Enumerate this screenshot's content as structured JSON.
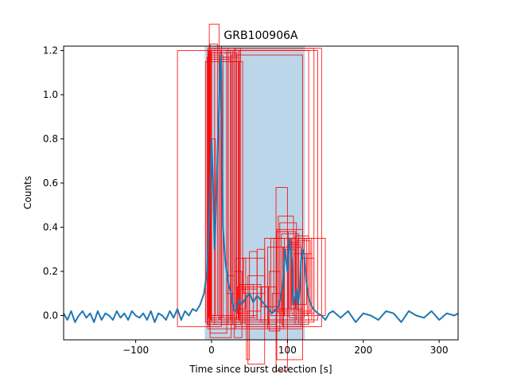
{
  "chart_data": {
    "type": "line",
    "title": "GRB100906A",
    "xlabel": "Time since burst detection [s]",
    "ylabel": "Counts",
    "xlim": [
      -195,
      325
    ],
    "ylim": [
      -0.11,
      1.22
    ],
    "xticks": [
      -100,
      0,
      100,
      200,
      300
    ],
    "yticks": [
      0.0,
      0.2,
      0.4,
      0.6,
      0.8,
      1.0,
      1.2
    ],
    "tick_labels_x": [
      "−100",
      "0",
      "100",
      "200",
      "300"
    ],
    "tick_labels_y": [
      "0.0",
      "0.2",
      "0.4",
      "0.6",
      "0.8",
      "1.0",
      "1.2"
    ],
    "shaded_interval": [
      -9,
      123
    ],
    "series": [
      {
        "color": "#1f77b4",
        "x": [
          -195,
          -190,
          -185,
          -180,
          -175,
          -170,
          -165,
          -160,
          -155,
          -150,
          -145,
          -140,
          -135,
          -130,
          -125,
          -120,
          -115,
          -110,
          -105,
          -100,
          -95,
          -90,
          -85,
          -80,
          -75,
          -70,
          -65,
          -60,
          -55,
          -50,
          -45,
          -40,
          -35,
          -30,
          -25,
          -20,
          -15,
          -10,
          -6,
          -3,
          0,
          2,
          4,
          6,
          8,
          10,
          11,
          12,
          13,
          14,
          15,
          16,
          17,
          18,
          19,
          20,
          22,
          24,
          26,
          28,
          30,
          33,
          36,
          40,
          45,
          50,
          55,
          60,
          65,
          70,
          75,
          80,
          85,
          88,
          91,
          94,
          97,
          100,
          103,
          106,
          108,
          110,
          112,
          114,
          116,
          118,
          120,
          122,
          125,
          128,
          131,
          134,
          137,
          140,
          145,
          150,
          155,
          160,
          170,
          180,
          190,
          200,
          210,
          220,
          230,
          240,
          250,
          260,
          270,
          280,
          290,
          300,
          310,
          320,
          325
        ],
        "y": [
          0.01,
          -0.02,
          0.02,
          -0.03,
          0.0,
          0.02,
          -0.01,
          0.01,
          -0.03,
          0.02,
          -0.02,
          0.01,
          0.0,
          -0.02,
          0.02,
          -0.01,
          0.01,
          -0.02,
          0.02,
          0.0,
          -0.01,
          0.01,
          -0.02,
          0.02,
          -0.03,
          0.01,
          0.0,
          -0.02,
          0.02,
          -0.01,
          0.03,
          -0.02,
          0.02,
          0.0,
          0.03,
          0.02,
          0.05,
          0.1,
          0.2,
          0.45,
          0.8,
          0.6,
          0.3,
          0.5,
          0.75,
          0.95,
          1.1,
          1.18,
          1.12,
          0.7,
          0.4,
          0.35,
          0.3,
          0.25,
          0.22,
          0.2,
          0.15,
          0.12,
          0.1,
          0.05,
          0.02,
          0.03,
          0.07,
          0.05,
          0.08,
          0.1,
          0.06,
          0.09,
          0.07,
          0.05,
          0.03,
          0.01,
          0.03,
          0.04,
          0.08,
          0.15,
          0.3,
          0.2,
          0.35,
          0.25,
          0.05,
          0.08,
          0.12,
          0.05,
          0.1,
          0.25,
          0.3,
          0.28,
          0.15,
          0.08,
          0.05,
          0.03,
          0.02,
          0.01,
          0.0,
          -0.02,
          0.01,
          0.02,
          -0.01,
          0.02,
          -0.03,
          0.01,
          0.0,
          -0.02,
          0.02,
          0.01,
          -0.03,
          0.02,
          0.0,
          -0.01,
          0.02,
          -0.02,
          0.01,
          0.0,
          0.01
        ]
      }
    ],
    "boxes": [
      [
        -45,
        -0.05,
        -3,
        1.2
      ],
      [
        -3,
        -0.02,
        10,
        1.32
      ],
      [
        -1,
        0.0,
        5,
        0.8
      ],
      [
        -2,
        0.0,
        8,
        1.23
      ],
      [
        -5,
        -0.02,
        12,
        1.2
      ],
      [
        -3,
        -0.05,
        13,
        1.22
      ],
      [
        -4,
        -0.01,
        15,
        1.18
      ],
      [
        -2,
        -0.08,
        20,
        1.19
      ],
      [
        0,
        -0.03,
        22,
        1.21
      ],
      [
        -1,
        -0.02,
        25,
        1.2
      ],
      [
        -6,
        -0.04,
        28,
        1.17
      ],
      [
        -3,
        0.0,
        30,
        1.2
      ],
      [
        -5,
        -0.06,
        32,
        1.21
      ],
      [
        -2,
        -0.1,
        26,
        1.16
      ],
      [
        0,
        -0.02,
        33,
        1.19
      ],
      [
        -4,
        -0.01,
        35,
        1.2
      ],
      [
        -8,
        -0.03,
        36,
        1.15
      ],
      [
        4,
        -0.04,
        38,
        1.21
      ],
      [
        10,
        -0.02,
        35,
        1.17
      ],
      [
        20,
        -0.02,
        37,
        1.2
      ],
      [
        22,
        -0.04,
        41,
        1.15
      ],
      [
        26,
        -0.06,
        120,
        1.18
      ],
      [
        28,
        -0.02,
        128,
        1.2
      ],
      [
        30,
        -0.03,
        135,
        1.21
      ],
      [
        25,
        -0.02,
        140,
        1.2
      ],
      [
        30,
        -0.05,
        145,
        1.21
      ],
      [
        20,
        0.1,
        30,
        0.18
      ],
      [
        30,
        -0.1,
        40,
        0.2
      ],
      [
        32,
        0.03,
        45,
        0.26
      ],
      [
        34,
        0.01,
        50,
        0.13
      ],
      [
        36,
        -0.01,
        55,
        0.14
      ],
      [
        38,
        0.0,
        60,
        0.12
      ],
      [
        40,
        0.02,
        65,
        0.14
      ],
      [
        42,
        0.1,
        70,
        0.26
      ],
      [
        44,
        -0.04,
        75,
        0.13
      ],
      [
        46,
        -0.2,
        50,
        0.09
      ],
      [
        48,
        -0.22,
        70,
        0.18
      ],
      [
        50,
        -0.01,
        60,
        0.29
      ],
      [
        60,
        -0.02,
        70,
        0.3
      ],
      [
        65,
        -0.03,
        70,
        0.13
      ],
      [
        66,
        0.04,
        85,
        0.13
      ],
      [
        70,
        -0.04,
        86,
        0.35
      ],
      [
        74,
        -0.06,
        95,
        0.31
      ],
      [
        76,
        -0.07,
        90,
        0.2
      ],
      [
        78,
        0.0,
        96,
        0.35
      ],
      [
        80,
        0.02,
        93,
        0.1
      ],
      [
        82,
        0.02,
        105,
        0.35
      ],
      [
        86,
        0.03,
        101,
        0.38
      ],
      [
        88,
        0.01,
        108,
        0.45
      ],
      [
        88,
        0.03,
        111,
        0.38
      ],
      [
        90,
        -0.02,
        112,
        0.42
      ],
      [
        92,
        -0.04,
        115,
        0.37
      ],
      [
        94,
        -0.05,
        118,
        0.31
      ],
      [
        96,
        0.0,
        110,
        0.3
      ],
      [
        100,
        -0.02,
        118,
        0.32
      ],
      [
        102,
        -0.01,
        122,
        0.35
      ],
      [
        104,
        0.03,
        120,
        0.33
      ],
      [
        106,
        0.05,
        125,
        0.35
      ],
      [
        108,
        0.0,
        126,
        0.28
      ],
      [
        110,
        -0.04,
        128,
        0.36
      ],
      [
        112,
        0.01,
        130,
        0.34
      ],
      [
        114,
        0.02,
        132,
        0.35
      ],
      [
        118,
        -0.02,
        132,
        0.28
      ],
      [
        120,
        0.01,
        135,
        0.26
      ],
      [
        122,
        0.0,
        150,
        0.35
      ],
      [
        85,
        -0.25,
        100,
        0.58
      ],
      [
        86,
        -0.2,
        120,
        0.39
      ]
    ]
  }
}
